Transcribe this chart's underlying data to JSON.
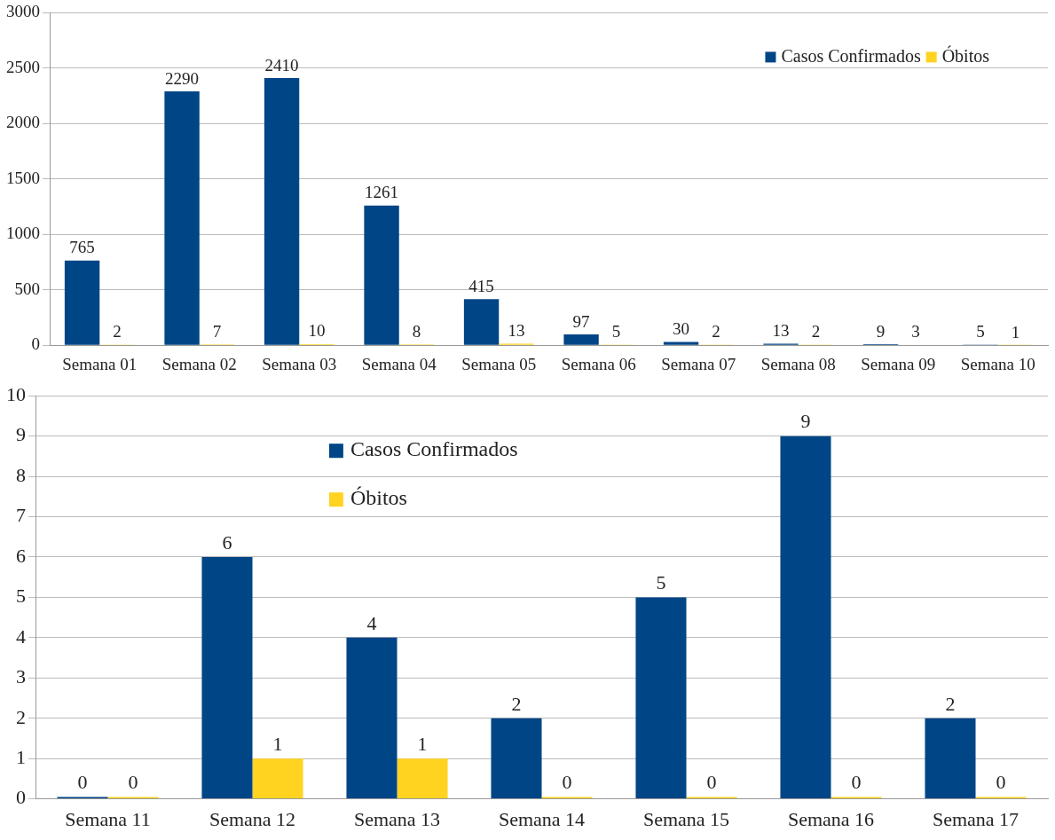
{
  "chart_data": [
    {
      "type": "bar",
      "categories": [
        "Semana 01",
        "Semana 02",
        "Semana 03",
        "Semana 04",
        "Semana 05",
        "Semana 06",
        "Semana 07",
        "Semana 08",
        "Semana 09",
        "Semana 10"
      ],
      "series": [
        {
          "name": "Casos Confirmados",
          "color": "#004586",
          "values": [
            765,
            2290,
            2410,
            1261,
            415,
            97,
            30,
            13,
            9,
            5
          ]
        },
        {
          "name": "Óbitos",
          "color": "#ffd320",
          "values": [
            2,
            7,
            10,
            8,
            13,
            5,
            2,
            2,
            3,
            1
          ]
        }
      ],
      "ylim": [
        0,
        3000
      ],
      "yticks": [
        0,
        500,
        1000,
        1500,
        2000,
        2500,
        3000
      ],
      "grid": "y",
      "legend": "top right",
      "data_labels": true
    },
    {
      "type": "bar",
      "categories": [
        "Semana 11",
        "Semana 12",
        "Semana 13",
        "Semana 14",
        "Semana 15",
        "Semana 16",
        "Semana 17"
      ],
      "series": [
        {
          "name": "Casos Confirmados",
          "color": "#004586",
          "values": [
            0,
            6,
            4,
            2,
            5,
            9,
            2
          ]
        },
        {
          "name": "Óbitos",
          "color": "#ffd320",
          "values": [
            0,
            1,
            1,
            0,
            0,
            0,
            0
          ]
        }
      ],
      "ylim": [
        0,
        10
      ],
      "yticks": [
        0,
        1,
        2,
        3,
        4,
        5,
        6,
        7,
        8,
        9,
        10
      ],
      "grid": "y",
      "legend": "top",
      "data_labels": true
    }
  ]
}
